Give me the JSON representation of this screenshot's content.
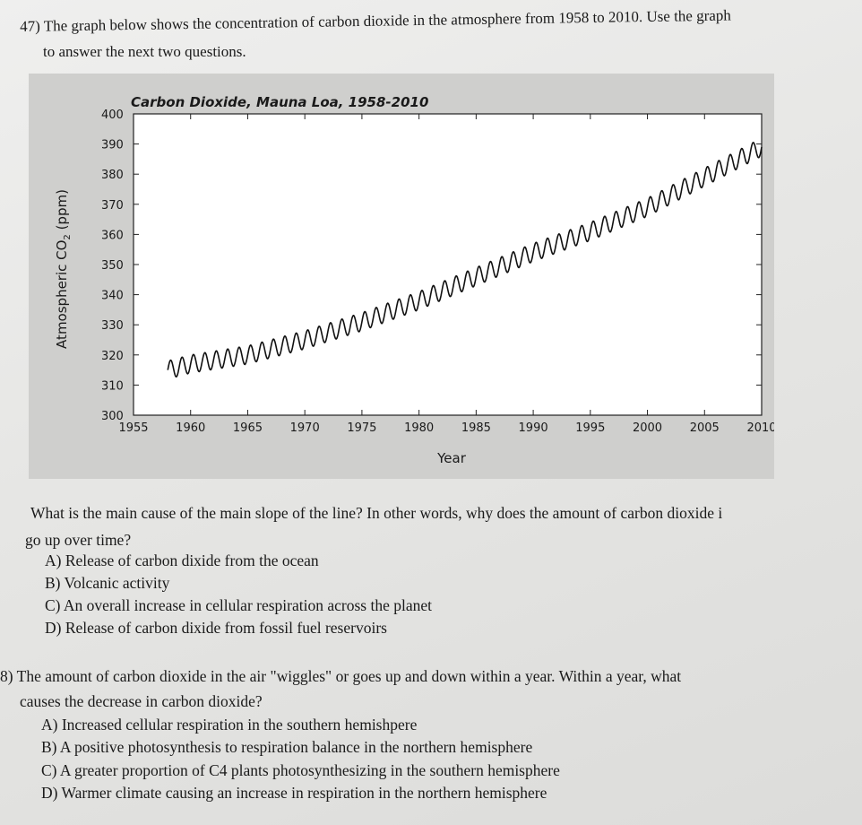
{
  "question47": {
    "line1": "47) The graph below shows the concentration of carbon dioxide in the atmosphere from 1958 to 2010. Use the graph",
    "line2": "to answer the next two questions."
  },
  "chart_data": {
    "type": "line",
    "title": "Carbon Dioxide, Mauna Loa, 1958-2010",
    "xlabel": "Year",
    "ylabel_prefix": "Atmospheric CO",
    "ylabel_subscript": "2",
    "ylabel_suffix": " (ppm)",
    "xlim": [
      1955,
      2010
    ],
    "ylim": [
      300,
      400
    ],
    "x_ticks": [
      "1955",
      "1960",
      "1965",
      "1970",
      "1975",
      "1980",
      "1985",
      "1990",
      "1995",
      "2000",
      "2005",
      "2010"
    ],
    "y_ticks": [
      "300",
      "310",
      "320",
      "330",
      "340",
      "350",
      "360",
      "370",
      "380",
      "390",
      "400"
    ],
    "grid": false,
    "series": [
      {
        "seasonal_amplitude_ppm": 3,
        "annual_mean": {
          "x": [
            1958,
            1960,
            1965,
            1970,
            1975,
            1980,
            1985,
            1990,
            1995,
            2000,
            2005,
            2010
          ],
          "y": [
            315,
            317,
            320,
            325,
            331,
            338,
            346,
            354,
            361,
            369,
            379,
            389
          ]
        }
      }
    ],
    "color": "#111111"
  },
  "question1": {
    "stem_line1": "What is the main cause of the main slope of the line? In other words, why does the amount of carbon dioxide i",
    "stem_line2": "go up over time?",
    "options": [
      "A) Release of carbon dixide from the ocean",
      "B) Volcanic activity",
      "C) An overall increase in cellular respiration across the planet",
      "D) Release of carbon dixide from fossil fuel reservoirs"
    ]
  },
  "question2": {
    "stem_line1": "8) The amount of carbon dioxide in the air \"wiggles\" or goes up and down within a year. Within a year, what",
    "stem_line2": "causes the decrease in carbon dioxide?",
    "options": [
      "A) Increased cellular respiration in the southern hemishpere",
      "B) A positive photosynthesis to respiration balance in the northern hemisphere",
      "C) A greater proportion of C4 plants photosynthesizing in the southern hemisphere",
      "D) Warmer climate causing an increase in respiration in the northern hemisphere"
    ]
  }
}
